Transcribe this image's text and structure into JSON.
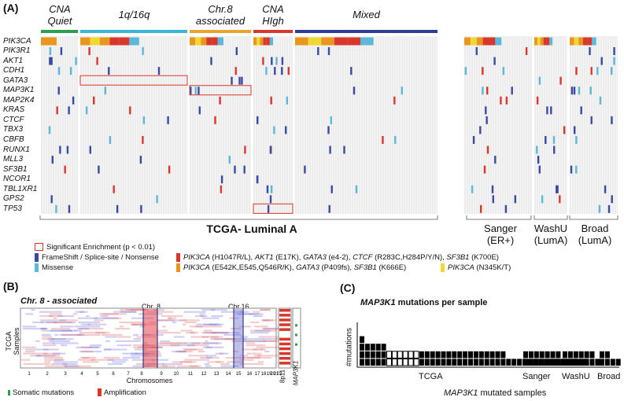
{
  "panel_a": {
    "letter": "(A)",
    "groups": [
      {
        "title": "CNA\nQuiet",
        "color": "#2e9e4f"
      },
      {
        "title": "1q/16q",
        "color": "#3bb6d8"
      },
      {
        "title": "Chr.8\nassociated",
        "color": "#e8a52a"
      },
      {
        "title": "CNA\nHIgh",
        "color": "#d9372b"
      },
      {
        "title": "Mixed",
        "color": "#2f3d96"
      }
    ],
    "genes": [
      "PIK3CA",
      "PIK3R1",
      "AKT1",
      "CDH1",
      "GATA3",
      "MAP3K1",
      "MAP2K4",
      "KRAS",
      "CTCF",
      "TBX3",
      "CBFB",
      "RUNX1",
      "MLL3",
      "SF3B1",
      "NCOR1",
      "TBL1XR1",
      "GPS2",
      "TP53"
    ],
    "tcga_label": "TCGA- Luminal A",
    "validation": [
      {
        "label": "Sanger\n(ER+)"
      },
      {
        "label": "WashU\n(LumA)"
      },
      {
        "label": "Broad\n(LumA)"
      }
    ],
    "legend": {
      "enrichment": "Significant Enrichment (p < 0.01)",
      "frameshift": "FrameShift / Splice-site / Nonsense",
      "missense": "Missense",
      "red_line": [
        {
          "gene": "PIK3CA",
          "text": " (H1047R/L), "
        },
        {
          "gene": "AKT1",
          "text": " (E17K), "
        },
        {
          "gene": "GATA3",
          "text": " (e4-2), "
        },
        {
          "gene": "CTCF",
          "text": " (R283C,H284P/Y/N), "
        },
        {
          "gene": "SF3B1",
          "text": " (K700E)"
        }
      ],
      "orange_line": [
        {
          "gene": "PIK3CA",
          "text": " (E542K,E545,Q546R/K), "
        },
        {
          "gene": "GATA3",
          "text": " (P409fs), "
        },
        {
          "gene": "SF3B1",
          "text": " (K666E)"
        }
      ],
      "yellow_line": [
        {
          "gene": "PIK3CA",
          "text": " (N345K/T)"
        }
      ]
    },
    "colors": {
      "frameshift": "#3a4aa3",
      "missense": "#5bb8db",
      "hotspot_red": "#d9372b",
      "hotspot_orange": "#e8961e",
      "hotspot_yellow": "#f0d832"
    }
  },
  "panel_b": {
    "letter": "(B)",
    "title": "Chr. 8 - associated",
    "ylabel": "TCGA Samples",
    "xlabel": "Chromosomes",
    "chr8_label": "Chr. 8",
    "chr16_label": "Chr.16",
    "chrom_ticks": [
      "1",
      "2",
      "3",
      "4",
      "5",
      "6",
      "7",
      "8",
      "9",
      "10",
      "11",
      "12",
      "13",
      "14",
      "15",
      "16",
      "17",
      "18",
      "19",
      "20",
      "21",
      "22"
    ],
    "side_label_1": "8p11",
    "side_label_2": "MAP3K1",
    "legend_somatic": "Somatic mutations",
    "legend_amp": "Amplification"
  },
  "panel_c": {
    "letter": "(C)",
    "title_gene": "MAP3K1",
    "title_rest": " mutations per sample",
    "ylabel": "#mutations",
    "xlabel_gene": "MAP3K1",
    "xlabel_rest": " mutated samples",
    "cohorts": [
      "TCGA",
      "Sanger",
      "WashU",
      "Broad"
    ],
    "chart_data": {
      "type": "bar",
      "title": "MAP3K1 mutations per sample",
      "ylabel": "#mutations",
      "xlabel": "MAP3K1 mutated samples",
      "series": [
        {
          "name": "TCGA",
          "values": [
            4,
            3,
            3,
            3,
            3,
            2,
            2,
            2,
            2,
            2,
            2,
            2,
            2,
            2,
            2,
            2,
            2,
            2,
            2,
            2,
            2,
            2,
            2,
            2,
            2,
            2,
            2,
            1,
            1,
            1,
            1,
            1,
            1,
            1,
            1,
            1,
            1,
            1,
            1,
            1,
            1,
            1
          ]
        },
        {
          "name": "Sanger",
          "values": [
            2,
            2,
            2,
            2,
            2,
            2,
            2,
            1,
            1,
            1
          ]
        },
        {
          "name": "WashU",
          "values": [
            2,
            2,
            2,
            2,
            2,
            2,
            1
          ]
        },
        {
          "name": "Broad",
          "values": [
            2,
            2,
            1,
            1
          ]
        }
      ],
      "open_bars_tcga_index_range": [
        5,
        10
      ]
    }
  }
}
